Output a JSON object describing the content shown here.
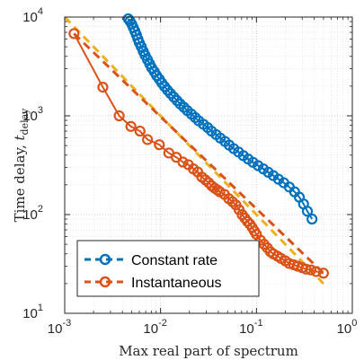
{
  "chart_data": {
    "type": "scatter",
    "xlabel": "Max real part of spectrum",
    "ylabel_main": "Time delay, ",
    "ylabel_var": "t",
    "ylabel_sub": "delay",
    "x_scale": "log",
    "y_scale": "log",
    "xlim": [
      0.001,
      1
    ],
    "ylim": [
      10,
      10000
    ],
    "x_ticks": [
      {
        "value": 0.001,
        "base": "10",
        "exp": "-3"
      },
      {
        "value": 0.01,
        "base": "10",
        "exp": "-2"
      },
      {
        "value": 0.1,
        "base": "10",
        "exp": "-1"
      },
      {
        "value": 1,
        "base": "10",
        "exp": "0"
      }
    ],
    "y_ticks": [
      {
        "value": 10,
        "base": "10",
        "exp": "1"
      },
      {
        "value": 100,
        "base": "10",
        "exp": "2"
      },
      {
        "value": 1000,
        "base": "10",
        "exp": "3"
      },
      {
        "value": 10000,
        "base": "10",
        "exp": "4"
      }
    ],
    "grid": true,
    "minor_grid": true,
    "legend_position": "lower-left",
    "series": [
      {
        "name": "Constant rate",
        "color": "#0072BD",
        "marker": "circle",
        "points": [
          [
            0.0046,
            9600
          ],
          [
            0.0048,
            9100
          ],
          [
            0.005,
            8500
          ],
          [
            0.0052,
            7800
          ],
          [
            0.0054,
            7200
          ],
          [
            0.0056,
            6600
          ],
          [
            0.0058,
            6000
          ],
          [
            0.006,
            5500
          ],
          [
            0.0063,
            5000
          ],
          [
            0.0066,
            4500
          ],
          [
            0.0069,
            4100
          ],
          [
            0.0073,
            3700
          ],
          [
            0.0077,
            3350
          ],
          [
            0.0081,
            3050
          ],
          [
            0.0086,
            2800
          ],
          [
            0.0091,
            2550
          ],
          [
            0.0097,
            2350
          ],
          [
            0.0103,
            2150
          ],
          [
            0.011,
            1980
          ],
          [
            0.0118,
            1820
          ],
          [
            0.0127,
            1680
          ],
          [
            0.0137,
            1550
          ],
          [
            0.0148,
            1430
          ],
          [
            0.016,
            1320
          ],
          [
            0.0175,
            1220
          ],
          [
            0.019,
            1130
          ],
          [
            0.021,
            1040
          ],
          [
            0.023,
            960
          ],
          [
            0.025,
            890
          ],
          [
            0.028,
            820
          ],
          [
            0.031,
            760
          ],
          [
            0.034,
            700
          ],
          [
            0.038,
            645
          ],
          [
            0.042,
            595
          ],
          [
            0.047,
            550
          ],
          [
            0.052,
            505
          ],
          [
            0.058,
            465
          ],
          [
            0.065,
            430
          ],
          [
            0.073,
            395
          ],
          [
            0.082,
            365
          ],
          [
            0.092,
            338
          ],
          [
            0.104,
            313
          ],
          [
            0.118,
            290
          ],
          [
            0.133,
            268
          ],
          [
            0.15,
            248
          ],
          [
            0.17,
            228
          ],
          [
            0.193,
            210
          ],
          [
            0.22,
            190
          ],
          [
            0.25,
            170
          ],
          [
            0.28,
            150
          ],
          [
            0.31,
            128
          ],
          [
            0.34,
            108
          ],
          [
            0.38,
            90
          ]
        ]
      },
      {
        "name": "Instantaneous",
        "color": "#D95319",
        "marker": "circle",
        "points": [
          [
            0.00125,
            6800
          ],
          [
            0.0025,
            1950
          ],
          [
            0.0037,
            1000
          ],
          [
            0.0049,
            780
          ],
          [
            0.0061,
            700
          ],
          [
            0.0073,
            575
          ],
          [
            0.0097,
            510
          ],
          [
            0.0122,
            420
          ],
          [
            0.0146,
            380
          ],
          [
            0.0171,
            340
          ],
          [
            0.0195,
            320
          ],
          [
            0.022,
            290
          ],
          [
            0.0244,
            270
          ],
          [
            0.0269,
            240
          ],
          [
            0.0293,
            225
          ],
          [
            0.0318,
            210
          ],
          [
            0.0342,
            195
          ],
          [
            0.0366,
            185
          ],
          [
            0.039,
            178
          ],
          [
            0.0415,
            170
          ],
          [
            0.0464,
            160
          ],
          [
            0.0513,
            145
          ],
          [
            0.0562,
            135
          ],
          [
            0.061,
            125
          ],
          [
            0.0659,
            112
          ],
          [
            0.0708,
            100
          ],
          [
            0.0757,
            92
          ],
          [
            0.0806,
            85
          ],
          [
            0.0855,
            80
          ],
          [
            0.0903,
            74
          ],
          [
            0.0952,
            68
          ],
          [
            0.1,
            63
          ],
          [
            0.11,
            55
          ],
          [
            0.12,
            50
          ],
          [
            0.13,
            46
          ],
          [
            0.14,
            42
          ],
          [
            0.15,
            40
          ],
          [
            0.165,
            38
          ],
          [
            0.18,
            36
          ],
          [
            0.2,
            34
          ],
          [
            0.22,
            32
          ],
          [
            0.245,
            31
          ],
          [
            0.27,
            30
          ],
          [
            0.3,
            29
          ],
          [
            0.33,
            28
          ],
          [
            0.37,
            27.5
          ],
          [
            0.42,
            26.5
          ],
          [
            0.5,
            25.5
          ]
        ]
      }
    ],
    "fit_lines": [
      {
        "series": "Constant rate",
        "color": "#EDB120",
        "from": [
          0.001,
          10000
        ],
        "to": [
          0.5,
          20
        ]
      },
      {
        "series": "Instantaneous",
        "color": "#D95319",
        "from": [
          0.00125,
          6800
        ],
        "to": [
          0.5,
          25.5
        ]
      }
    ]
  }
}
